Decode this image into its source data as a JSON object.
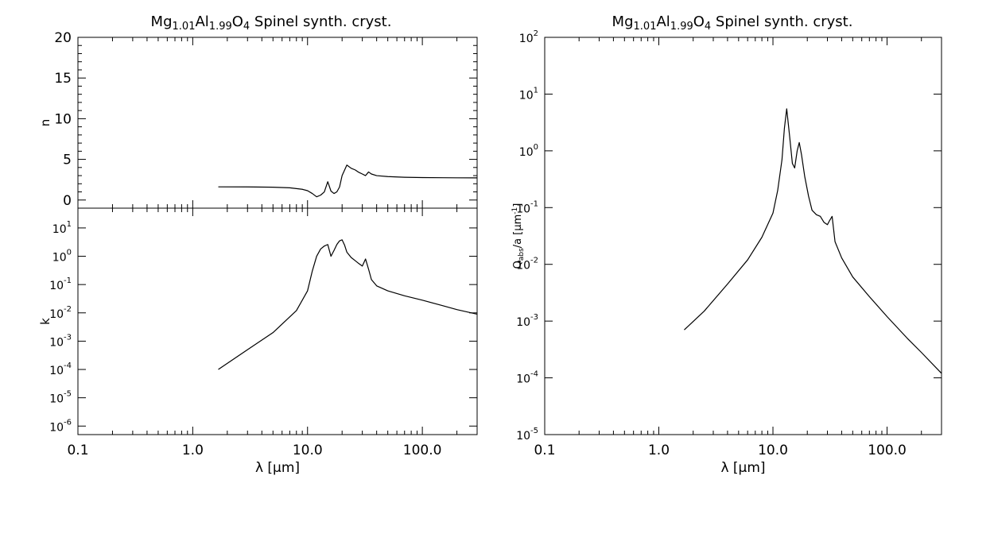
{
  "figure": {
    "left_title": "Mg1.01Al1.99O4 Spinel synth. cryst.",
    "right_title": "Mg1.01Al1.99O4 Spinel synth. cryst."
  },
  "chart_data": [
    {
      "type": "line",
      "title": "Mg1.01Al1.99O4 Spinel synth. cryst.",
      "xlabel": "λ [μm]",
      "ylabel": "n",
      "xscale": "log",
      "xlim": [
        0.1,
        300
      ],
      "ylim": [
        -1,
        20
      ],
      "yticks": [
        "0",
        "5",
        "10",
        "15",
        "20"
      ],
      "xticks": [
        "0.1",
        "1.0",
        "10.0",
        "100.0"
      ],
      "grid": false,
      "series": [
        {
          "x": [
            1.67,
            3,
            5,
            7,
            9,
            10,
            11,
            12,
            13,
            14,
            15,
            16,
            17,
            18,
            19,
            20,
            22,
            24,
            26,
            28,
            30,
            32,
            34,
            36,
            40,
            50,
            70,
            100,
            150,
            200,
            300
          ],
          "values": [
            1.62,
            1.61,
            1.58,
            1.5,
            1.32,
            1.15,
            0.8,
            0.4,
            0.6,
            1.0,
            2.25,
            1.1,
            0.8,
            1.0,
            1.6,
            3.0,
            4.3,
            3.9,
            3.7,
            3.4,
            3.2,
            3.0,
            3.45,
            3.2,
            3.0,
            2.88,
            2.8,
            2.76,
            2.74,
            2.73,
            2.72
          ]
        }
      ]
    },
    {
      "type": "line",
      "xlabel": "λ [μm]",
      "ylabel": "k",
      "xscale": "log",
      "yscale": "log",
      "xlim": [
        0.1,
        300
      ],
      "ylim": [
        5e-07,
        50
      ],
      "yticks": [
        "10^-6",
        "10^-5",
        "10^-4",
        "10^-3",
        "10^-2",
        "10^-1",
        "10^0",
        "10^1"
      ],
      "xticks": [
        "0.1",
        "1.0",
        "10.0",
        "100.0"
      ],
      "grid": false,
      "series": [
        {
          "x": [
            1.67,
            3,
            5,
            8,
            10,
            11,
            12,
            13,
            14,
            15,
            16,
            17,
            18,
            19,
            20,
            21,
            22,
            24,
            26,
            28,
            30,
            32,
            34,
            36,
            40,
            50,
            70,
            100,
            150,
            200,
            300
          ],
          "values": [
            0.0001,
            0.0005,
            0.002,
            0.012,
            0.06,
            0.3,
            1.0,
            1.8,
            2.3,
            2.6,
            1.0,
            1.6,
            2.6,
            3.5,
            3.8,
            2.5,
            1.4,
            0.9,
            0.7,
            0.55,
            0.45,
            0.8,
            0.35,
            0.15,
            0.09,
            0.06,
            0.04,
            0.028,
            0.018,
            0.013,
            0.009
          ]
        }
      ]
    },
    {
      "type": "line",
      "title": "Mg1.01Al1.99O4 Spinel synth. cryst.",
      "xlabel": "λ [μm]",
      "ylabel": "Qabs/a [μm-1]",
      "xscale": "log",
      "yscale": "log",
      "xlim": [
        0.1,
        300
      ],
      "ylim": [
        1e-05,
        100
      ],
      "yticks": [
        "10^-5",
        "10^-4",
        "10^-3",
        "10^-2",
        "10^-1",
        "10^0",
        "10^1",
        "10^2"
      ],
      "xticks": [
        "0.1",
        "1.0",
        "10.0",
        "100.0"
      ],
      "grid": false,
      "series": [
        {
          "x": [
            1.67,
            2.5,
            4,
            6,
            8,
            10,
            11,
            12,
            12.6,
            13.2,
            14,
            14.8,
            15.5,
            16.3,
            17,
            17.8,
            19,
            20.5,
            22,
            24,
            26,
            28,
            30,
            31.5,
            33,
            35,
            40,
            50,
            70,
            100,
            150,
            200,
            300
          ],
          "values": [
            0.0007,
            0.0015,
            0.0045,
            0.012,
            0.03,
            0.08,
            0.2,
            0.7,
            2.5,
            5.5,
            1.8,
            0.6,
            0.5,
            1.0,
            1.4,
            0.85,
            0.35,
            0.16,
            0.09,
            0.075,
            0.07,
            0.055,
            0.05,
            0.06,
            0.07,
            0.025,
            0.013,
            0.006,
            0.0027,
            0.0012,
            0.0005,
            0.00028,
            0.00012
          ]
        }
      ]
    }
  ]
}
